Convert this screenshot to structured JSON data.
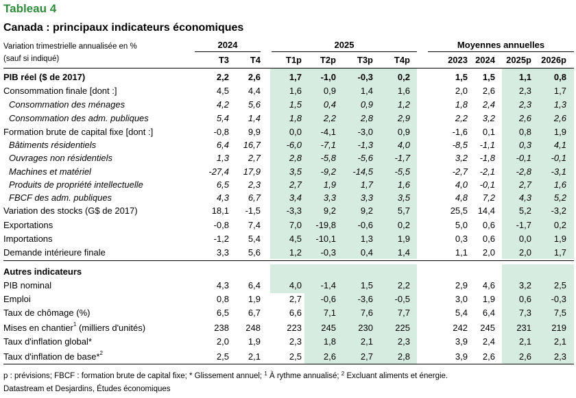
{
  "title": "Tableau 4",
  "subtitle": "Canada : principaux indicateurs économiques",
  "header_note": [
    "Variation trimestrielle annualisée en %",
    "(sauf si indiqué)"
  ],
  "groups": [
    "2024",
    "2025",
    "Moyennes annuelles"
  ],
  "columns": [
    "T3",
    "T4",
    "T1p",
    "T2p",
    "T3p",
    "T4p",
    "2023",
    "2024",
    "2025p",
    "2026p"
  ],
  "rows": [
    {
      "label": "PIB réel ($ de 2017)",
      "values": [
        "2,2",
        "2,6",
        "1,7",
        "-1,0",
        "-0,3",
        "0,2",
        "1,5",
        "1,5",
        "1,1",
        "0,8"
      ]
    },
    {
      "label": "Consommation finale [dont :]",
      "values": [
        "4,5",
        "4,4",
        "1,6",
        "0,9",
        "1,4",
        "1,6",
        "2,0",
        "2,6",
        "2,3",
        "1,7"
      ]
    },
    {
      "label": "Consommation des ménages",
      "values": [
        "4,2",
        "5,6",
        "1,5",
        "0,4",
        "0,9",
        "1,2",
        "1,8",
        "2,4",
        "2,3",
        "1,3"
      ]
    },
    {
      "label": "Consommation des adm. publiques",
      "values": [
        "5,4",
        "1,4",
        "1,8",
        "2,2",
        "2,8",
        "2,9",
        "2,2",
        "3,2",
        "2,6",
        "2,6"
      ]
    },
    {
      "label": "Formation brute de capital fixe [dont :]",
      "values": [
        "-0,8",
        "9,9",
        "0,0",
        "-4,1",
        "-3,0",
        "0,9",
        "-1,6",
        "0,1",
        "0,8",
        "1,9"
      ]
    },
    {
      "label": "Bâtiments résidentiels",
      "values": [
        "6,4",
        "16,7",
        "-6,0",
        "-7,1",
        "-1,3",
        "4,0",
        "-8,5",
        "-1,1",
        "0,3",
        "4,1"
      ]
    },
    {
      "label": "Ouvrages non résidentiels",
      "values": [
        "1,3",
        "2,7",
        "2,8",
        "-5,8",
        "-5,6",
        "-1,7",
        "3,2",
        "-1,8",
        "-0,1",
        "-0,1"
      ]
    },
    {
      "label": "Machines et matériel",
      "values": [
        "-27,4",
        "17,9",
        "3,5",
        "-9,2",
        "-14,5",
        "-5,5",
        "-2,7",
        "-2,1",
        "-2,8",
        "-3,1"
      ]
    },
    {
      "label": "Produits de propriété intellectuelle",
      "values": [
        "6,5",
        "2,3",
        "2,7",
        "1,9",
        "1,7",
        "1,6",
        "4,0",
        "-0,1",
        "2,7",
        "1,6"
      ]
    },
    {
      "label": "FBCF des adm. publiques",
      "values": [
        "4,3",
        "6,7",
        "3,4",
        "3,3",
        "3,3",
        "3,5",
        "4,8",
        "7,2",
        "4,3",
        "5,2"
      ]
    },
    {
      "label": "Variation des stocks (G$ de 2017)",
      "values": [
        "18,1",
        "-1,5",
        "-3,3",
        "9,2",
        "9,2",
        "5,7",
        "25,5",
        "14,4",
        "5,2",
        "-3,2"
      ]
    },
    {
      "label": "Exportations",
      "values": [
        "-0,8",
        "7,4",
        "7,0",
        "-19,8",
        "-0,6",
        "0,2",
        "5,0",
        "0,6",
        "-1,7",
        "0,2"
      ]
    },
    {
      "label": "Importations",
      "values": [
        "-1,2",
        "5,4",
        "4,5",
        "-10,1",
        "1,3",
        "1,9",
        "0,3",
        "0,6",
        "0,0",
        "1,9"
      ]
    },
    {
      "label": "Demande intérieure finale",
      "values": [
        "3,3",
        "5,6",
        "1,2",
        "-0,3",
        "0,4",
        "1,4",
        "1,1",
        "2,0",
        "2,0",
        "1,7"
      ]
    }
  ],
  "other_header": "Autres indicateurs",
  "other_rows": [
    {
      "label": "PIB nominal",
      "sup": "",
      "values": [
        "4,3",
        "6,4",
        "4,0",
        "-1,4",
        "1,5",
        "2,2",
        "2,9",
        "4,6",
        "3,2",
        "2,5"
      ]
    },
    {
      "label": "Emploi",
      "sup": "",
      "values": [
        "0,8",
        "1,9",
        "2,7",
        "-0,6",
        "-3,6",
        "-0,5",
        "3,0",
        "1,9",
        "0,6",
        "-0,3"
      ]
    },
    {
      "label": "Taux de chômage (%)",
      "sup": "",
      "values": [
        "6,5",
        "6,7",
        "6,6",
        "7,1",
        "7,6",
        "7,7",
        "5,4",
        "6,4",
        "7,3",
        "7,5"
      ]
    },
    {
      "label": "Mises en chantier",
      "sup": "1",
      "suffix": " (milliers d'unités)",
      "values": [
        "238",
        "248",
        "223",
        "245",
        "230",
        "225",
        "242",
        "245",
        "231",
        "219"
      ]
    },
    {
      "label": "Taux d'inflation global*",
      "sup": "",
      "values": [
        "2,0",
        "1,9",
        "2,3",
        "1,8",
        "2,1",
        "2,3",
        "3,9",
        "2,4",
        "2,1",
        "2,1"
      ]
    },
    {
      "label": "Taux d'inflation de base*",
      "sup": "2",
      "values": [
        "2,5",
        "2,1",
        "2,5",
        "2,6",
        "2,7",
        "2,8",
        "3,9",
        "2,6",
        "2,6",
        "2,3"
      ]
    }
  ],
  "footnote": {
    "part1": "p : prévisions; FBCF : formation brute de capital fixe; * Glissement annuel; ",
    "sup1": "1",
    "part2": " À rythme annualisé; ",
    "sup2": "2",
    "part3": " Excluant aliments et énergie."
  },
  "source": "Datastream et Desjardins, Études économiques",
  "colors": {
    "title": "#2e8b3c",
    "shade": "#d6ece0"
  }
}
